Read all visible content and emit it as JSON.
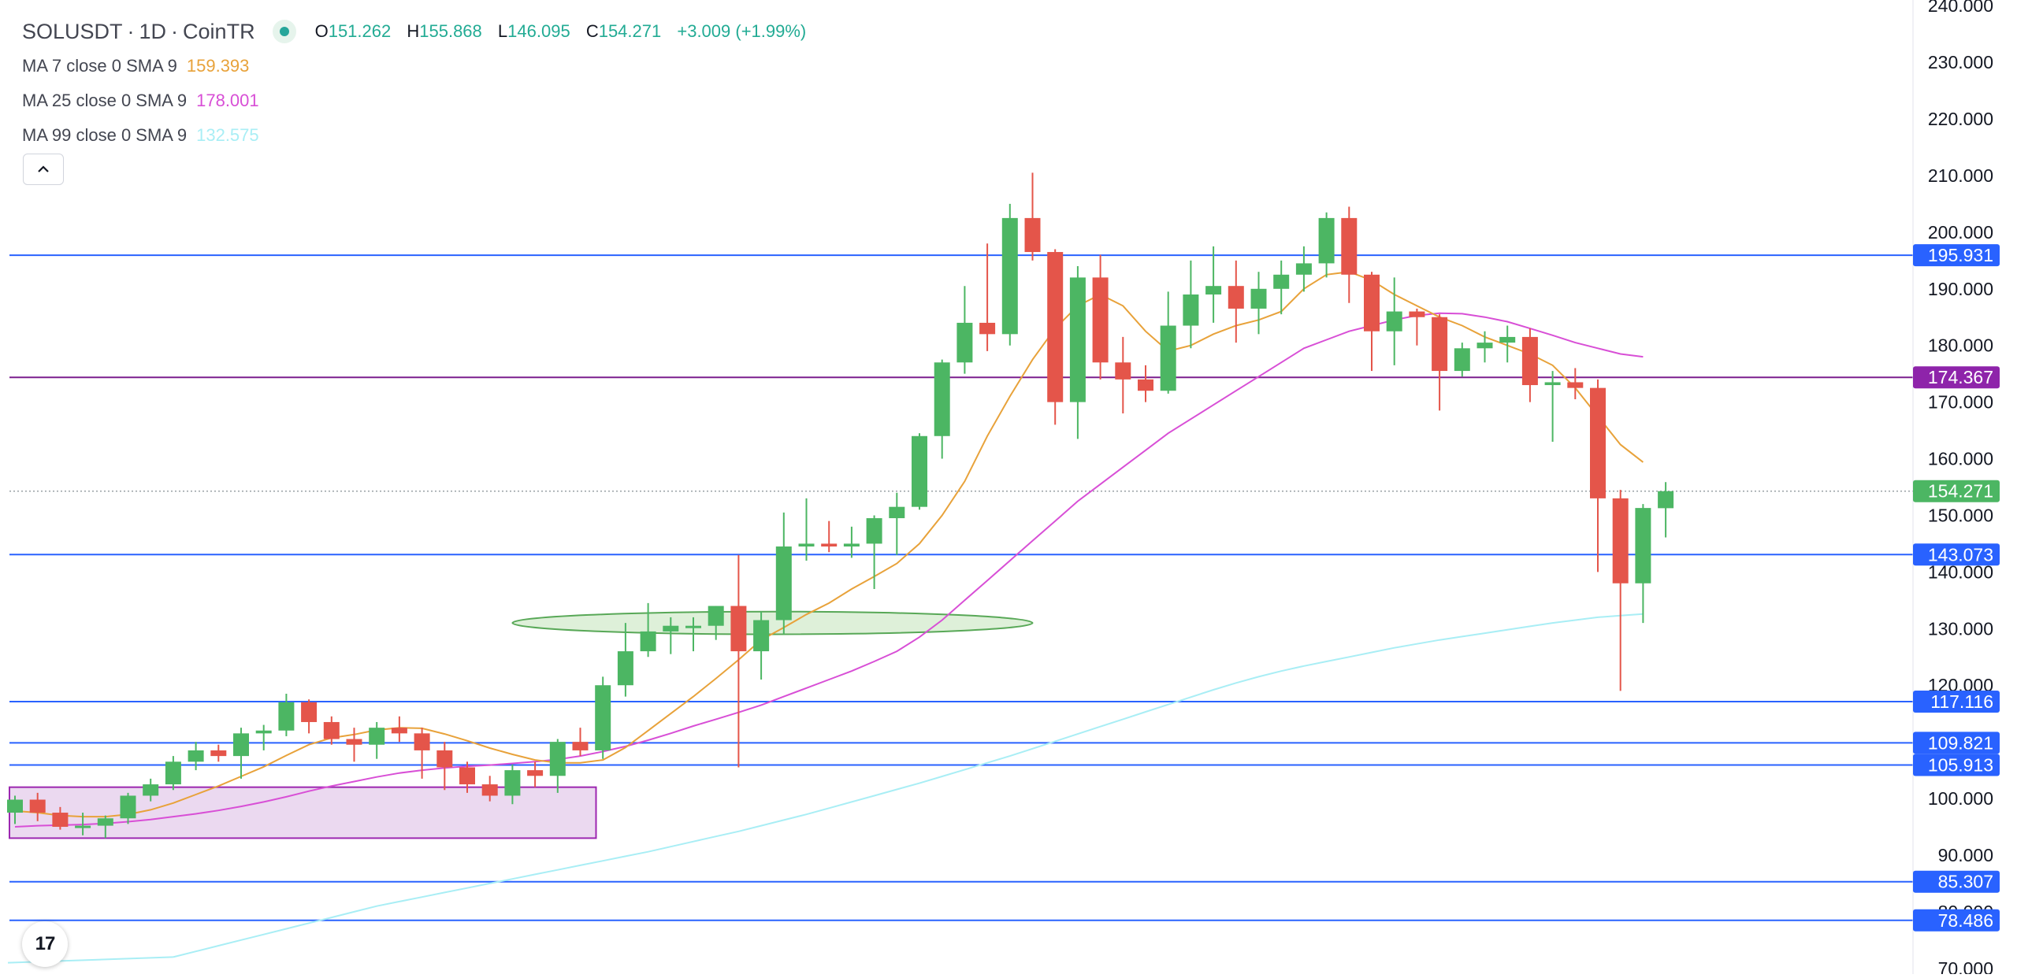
{
  "header": {
    "symbol": "SOLUSDT",
    "separator1": "·",
    "interval": "1D",
    "separator2": "·",
    "exchange": "CoinTR",
    "ohlc": {
      "open_key": "O",
      "open": "151.262",
      "high_key": "H",
      "high": "155.868",
      "low_key": "L",
      "low": "146.095",
      "close_key": "C",
      "close": "154.271",
      "change": "+3.009 (+1.99%)"
    }
  },
  "indicators": [
    {
      "label": "MA 7 close 0 SMA 9",
      "value": "159.393",
      "color": "#e8a23a"
    },
    {
      "label": "MA 25 close 0 SMA 9",
      "value": "178.001",
      "color": "#d84fd6"
    },
    {
      "label": "MA 99 close 0 SMA 9",
      "value": "132.575",
      "color": "#a9eef5"
    }
  ],
  "collapse_icon": "chevron-up-icon",
  "logo": {
    "icon": "tradingview-logo-icon",
    "text": "17"
  },
  "colors": {
    "up": "#4cb663",
    "down": "#e4554a",
    "level_line": "#2962ff",
    "level_tag": "#2962ff",
    "resistance_line": "#7b1f8e",
    "resistance_tag": "#8e24aa",
    "price_tag": "#4cb663",
    "axis_text": "#131722",
    "rect_fill": "#e7d2ed",
    "rect_stroke": "#9c27b0",
    "ellipse_fill": "#d6ecd0",
    "ellipse_stroke": "#58a857"
  },
  "chart_data": {
    "type": "candlestick",
    "symbol": "SOLUSDT",
    "interval": "1D",
    "yaxis": {
      "ticks": [
        "240.000",
        "230.000",
        "220.000",
        "210.000",
        "200.000",
        "190.000",
        "180.000",
        "170.000",
        "160.000",
        "150.000",
        "140.000",
        "130.000",
        "120.000",
        "100.000",
        "90.000",
        "80.000",
        "70.000"
      ],
      "range": [
        69,
        241
      ]
    },
    "candles": [
      {
        "o": 97.5,
        "h": 100.5,
        "l": 95.5,
        "c": 99.8
      },
      {
        "o": 99.8,
        "h": 101.0,
        "l": 96.0,
        "c": 97.5
      },
      {
        "o": 97.5,
        "h": 98.5,
        "l": 94.5,
        "c": 95.0
      },
      {
        "o": 95.0,
        "h": 97.5,
        "l": 93.5,
        "c": 95.2
      },
      {
        "o": 95.2,
        "h": 97.0,
        "l": 93.0,
        "c": 96.5
      },
      {
        "o": 96.5,
        "h": 101.0,
        "l": 95.5,
        "c": 100.5
      },
      {
        "o": 100.5,
        "h": 103.5,
        "l": 99.5,
        "c": 102.5
      },
      {
        "o": 102.5,
        "h": 107.5,
        "l": 101.5,
        "c": 106.5
      },
      {
        "o": 106.5,
        "h": 110.0,
        "l": 105.0,
        "c": 108.5
      },
      {
        "o": 108.5,
        "h": 109.5,
        "l": 106.5,
        "c": 107.5
      },
      {
        "o": 107.5,
        "h": 112.5,
        "l": 103.5,
        "c": 111.5
      },
      {
        "o": 111.5,
        "h": 113.0,
        "l": 108.5,
        "c": 112.0
      },
      {
        "o": 112.0,
        "h": 118.5,
        "l": 111.0,
        "c": 117.0
      },
      {
        "o": 117.0,
        "h": 117.5,
        "l": 111.5,
        "c": 113.5
      },
      {
        "o": 113.5,
        "h": 114.5,
        "l": 109.5,
        "c": 110.5
      },
      {
        "o": 110.5,
        "h": 112.5,
        "l": 106.5,
        "c": 109.5
      },
      {
        "o": 109.5,
        "h": 113.5,
        "l": 107.0,
        "c": 112.5
      },
      {
        "o": 112.5,
        "h": 114.5,
        "l": 110.0,
        "c": 111.5
      },
      {
        "o": 111.5,
        "h": 112.5,
        "l": 103.5,
        "c": 108.5
      },
      {
        "o": 108.5,
        "h": 110.0,
        "l": 101.5,
        "c": 105.5
      },
      {
        "o": 105.5,
        "h": 106.5,
        "l": 101.0,
        "c": 102.5
      },
      {
        "o": 102.5,
        "h": 104.0,
        "l": 99.5,
        "c": 100.5
      },
      {
        "o": 100.5,
        "h": 106.0,
        "l": 99.0,
        "c": 105.0
      },
      {
        "o": 105.0,
        "h": 106.5,
        "l": 102.0,
        "c": 104.0
      },
      {
        "o": 104.0,
        "h": 110.5,
        "l": 101.0,
        "c": 110.0
      },
      {
        "o": 110.0,
        "h": 112.5,
        "l": 107.5,
        "c": 108.5
      },
      {
        "o": 108.5,
        "h": 121.5,
        "l": 107.0,
        "c": 120.0
      },
      {
        "o": 120.0,
        "h": 131.0,
        "l": 118.0,
        "c": 126.0
      },
      {
        "o": 126.0,
        "h": 134.5,
        "l": 125.0,
        "c": 129.5
      },
      {
        "o": 129.5,
        "h": 132.0,
        "l": 125.5,
        "c": 130.5
      },
      {
        "o": 130.5,
        "h": 132.0,
        "l": 126.0,
        "c": 130.5
      },
      {
        "o": 130.5,
        "h": 134.0,
        "l": 128.0,
        "c": 134.0
      },
      {
        "o": 134.0,
        "h": 143.0,
        "l": 105.5,
        "c": 126.0
      },
      {
        "o": 126.0,
        "h": 133.0,
        "l": 121.0,
        "c": 131.5
      },
      {
        "o": 131.5,
        "h": 150.5,
        "l": 129.0,
        "c": 144.5
      },
      {
        "o": 144.5,
        "h": 153.0,
        "l": 142.0,
        "c": 145.0
      },
      {
        "o": 145.0,
        "h": 149.0,
        "l": 143.5,
        "c": 144.5
      },
      {
        "o": 144.5,
        "h": 148.0,
        "l": 142.5,
        "c": 145.0
      },
      {
        "o": 145.0,
        "h": 150.0,
        "l": 137.0,
        "c": 149.5
      },
      {
        "o": 149.5,
        "h": 154.0,
        "l": 143.0,
        "c": 151.5
      },
      {
        "o": 151.5,
        "h": 164.5,
        "l": 151.0,
        "c": 164.0
      },
      {
        "o": 164.0,
        "h": 177.5,
        "l": 160.0,
        "c": 177.0
      },
      {
        "o": 177.0,
        "h": 190.5,
        "l": 175.0,
        "c": 184.0
      },
      {
        "o": 184.0,
        "h": 198.0,
        "l": 179.0,
        "c": 182.0
      },
      {
        "o": 182.0,
        "h": 205.0,
        "l": 180.0,
        "c": 202.5
      },
      {
        "o": 202.5,
        "h": 210.5,
        "l": 195.0,
        "c": 196.5
      },
      {
        "o": 196.5,
        "h": 197.0,
        "l": 166.0,
        "c": 170.0
      },
      {
        "o": 170.0,
        "h": 194.0,
        "l": 163.5,
        "c": 192.0
      },
      {
        "o": 192.0,
        "h": 196.0,
        "l": 174.0,
        "c": 177.0
      },
      {
        "o": 177.0,
        "h": 181.5,
        "l": 168.0,
        "c": 174.0
      },
      {
        "o": 174.0,
        "h": 176.5,
        "l": 170.0,
        "c": 172.0
      },
      {
        "o": 172.0,
        "h": 189.5,
        "l": 171.5,
        "c": 183.5
      },
      {
        "o": 183.5,
        "h": 195.0,
        "l": 179.5,
        "c": 189.0
      },
      {
        "o": 189.0,
        "h": 197.5,
        "l": 184.0,
        "c": 190.5
      },
      {
        "o": 190.5,
        "h": 195.0,
        "l": 180.5,
        "c": 186.5
      },
      {
        "o": 186.5,
        "h": 193.0,
        "l": 182.0,
        "c": 190.0
      },
      {
        "o": 190.0,
        "h": 195.0,
        "l": 185.5,
        "c": 192.5
      },
      {
        "o": 192.5,
        "h": 197.5,
        "l": 189.5,
        "c": 194.5
      },
      {
        "o": 194.5,
        "h": 203.5,
        "l": 192.0,
        "c": 202.5
      },
      {
        "o": 202.5,
        "h": 204.5,
        "l": 187.5,
        "c": 192.5
      },
      {
        "o": 192.5,
        "h": 193.0,
        "l": 175.5,
        "c": 182.5
      },
      {
        "o": 182.5,
        "h": 192.0,
        "l": 176.5,
        "c": 186.0
      },
      {
        "o": 186.0,
        "h": 186.5,
        "l": 180.0,
        "c": 185.0
      },
      {
        "o": 185.0,
        "h": 185.5,
        "l": 168.5,
        "c": 175.5
      },
      {
        "o": 175.5,
        "h": 180.5,
        "l": 174.5,
        "c": 179.5
      },
      {
        "o": 179.5,
        "h": 182.5,
        "l": 177.0,
        "c": 180.5
      },
      {
        "o": 180.5,
        "h": 183.5,
        "l": 177.0,
        "c": 181.5
      },
      {
        "o": 181.5,
        "h": 183.0,
        "l": 170.0,
        "c": 173.0
      },
      {
        "o": 173.0,
        "h": 175.5,
        "l": 163.0,
        "c": 173.5
      },
      {
        "o": 173.5,
        "h": 176.0,
        "l": 170.5,
        "c": 172.5
      },
      {
        "o": 172.5,
        "h": 174.0,
        "l": 140.0,
        "c": 153.0
      },
      {
        "o": 153.0,
        "h": 154.5,
        "l": 119.0,
        "c": 138.0
      },
      {
        "o": 138.0,
        "h": 152.0,
        "l": 131.0,
        "c": 151.3
      },
      {
        "o": 151.262,
        "h": 155.868,
        "l": 146.095,
        "c": 154.271
      }
    ],
    "ma7": [
      97.8,
      97.5,
      97.0,
      96.8,
      96.8,
      97.2,
      98.0,
      99.2,
      100.7,
      102.2,
      103.9,
      105.6,
      107.6,
      109.5,
      110.7,
      111.3,
      112.1,
      112.5,
      112.4,
      111.4,
      110.2,
      108.9,
      107.8,
      106.8,
      106.3,
      106.3,
      106.8,
      109.0,
      112.0,
      115.0,
      118.0,
      121.2,
      124.5,
      128.0,
      130.2,
      132.5,
      134.5,
      137.0,
      139.2,
      141.5,
      145.0,
      150.0,
      156.0,
      164.0,
      171.0,
      177.5,
      183.0,
      187.0,
      189.0,
      187.0,
      182.5,
      179.0,
      180.0,
      182.0,
      183.5,
      184.5,
      186.0,
      190.0,
      192.5,
      193.0,
      191.5,
      189.0,
      187.0,
      185.0,
      183.5,
      181.5,
      180.0,
      178.5,
      176.5,
      172.5,
      167.5,
      162.5,
      159.393
    ],
    "ma25": [
      95.0,
      95.2,
      95.3,
      95.4,
      95.6,
      95.9,
      96.3,
      96.8,
      97.3,
      97.9,
      98.6,
      99.4,
      100.3,
      101.3,
      102.2,
      103.0,
      103.8,
      104.5,
      105.0,
      105.4,
      105.7,
      105.9,
      106.2,
      106.5,
      106.9,
      107.5,
      108.3,
      109.2,
      110.3,
      111.5,
      112.8,
      114.0,
      115.2,
      116.5,
      118.0,
      119.5,
      121.0,
      122.5,
      124.2,
      126.0,
      128.5,
      131.5,
      135.0,
      138.5,
      142.0,
      145.5,
      149.0,
      152.5,
      155.5,
      158.5,
      161.5,
      164.5,
      167.0,
      169.5,
      172.0,
      174.5,
      177.0,
      179.5,
      181.0,
      182.5,
      183.5,
      184.5,
      185.3,
      185.7,
      185.6,
      185.0,
      184.2,
      183.0,
      181.8,
      180.5,
      179.5,
      178.5,
      178.001
    ],
    "ma99": [
      72.0,
      73.0,
      74.0,
      75.0,
      76.0,
      77.0,
      78.0,
      79.0,
      80.0,
      81.0,
      81.8,
      82.6,
      83.4,
      84.2,
      85.0,
      85.8,
      86.6,
      87.4,
      88.2,
      89.0,
      89.8,
      90.6,
      91.5,
      92.4,
      93.3,
      94.2,
      95.2,
      96.2,
      97.2,
      98.3,
      99.4,
      100.5,
      101.6,
      102.7,
      103.9,
      105.1,
      106.3,
      107.5,
      108.8,
      110.1,
      111.4,
      112.7,
      114.0,
      115.3,
      116.6,
      117.9,
      119.2,
      120.4,
      121.5,
      122.5,
      123.4,
      124.2,
      125.0,
      125.8,
      126.6,
      127.3,
      128.0,
      128.6,
      129.2,
      129.8,
      130.4,
      131.0,
      131.5,
      132.0,
      132.3,
      132.575
    ],
    "horizontal_levels": [
      {
        "price": "195.931",
        "kind": "level"
      },
      {
        "price": "174.367",
        "kind": "resistance"
      },
      {
        "price": "143.073",
        "kind": "level"
      },
      {
        "price": "117.116",
        "kind": "level"
      },
      {
        "price": "109.821",
        "kind": "level"
      },
      {
        "price": "105.913",
        "kind": "level"
      },
      {
        "price": "85.307",
        "kind": "level"
      },
      {
        "price": "78.486",
        "kind": "level"
      }
    ],
    "last_price": "154.271",
    "annotations": {
      "consolidation_box": {
        "x_start_index": 0,
        "x_end_index": 25,
        "price_top": 102.0,
        "price_bottom": 93.0
      },
      "ellipse": {
        "x_center_index": 33.5,
        "price": 131.0,
        "x_radius_bars": 11.5,
        "price_radius": 2.0
      }
    }
  }
}
